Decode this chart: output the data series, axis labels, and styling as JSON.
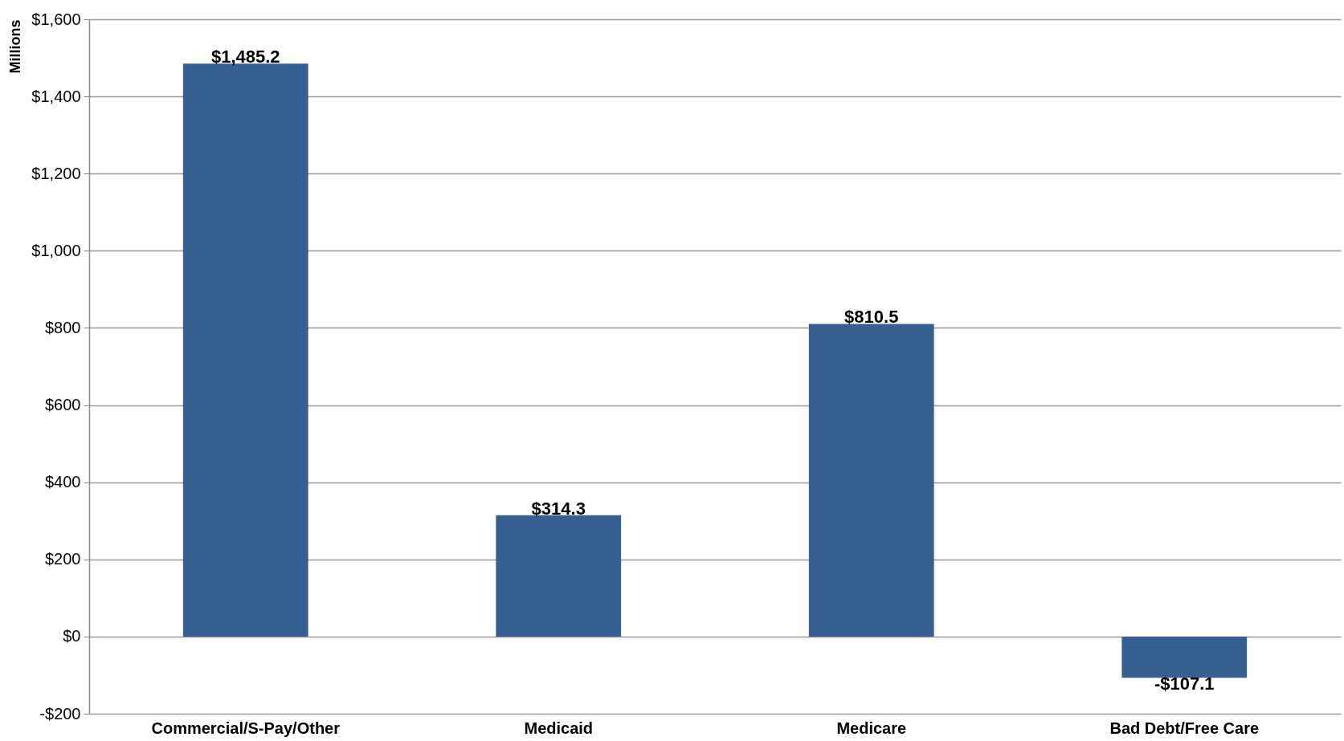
{
  "chart_data": {
    "type": "bar",
    "ylabel": "Millions",
    "categories": [
      "Commercial/S-Pay/Other",
      "Medicaid",
      "Medicare",
      "Bad Debt/Free Care"
    ],
    "values": [
      1485.2,
      314.3,
      810.5,
      -107.1
    ],
    "value_labels": [
      "$1,485.2",
      "$314.3",
      "$810.5",
      "-$107.1"
    ],
    "color": "#376092",
    "ylim": [
      -200,
      1600
    ],
    "yticks": [
      {
        "value": -200,
        "label": "-$200"
      },
      {
        "value": 0,
        "label": "$0"
      },
      {
        "value": 200,
        "label": "$200"
      },
      {
        "value": 400,
        "label": "$400"
      },
      {
        "value": 600,
        "label": "$600"
      },
      {
        "value": 800,
        "label": "$800"
      },
      {
        "value": 1000,
        "label": "$1,000"
      },
      {
        "value": 1200,
        "label": "$1,200"
      },
      {
        "value": 1400,
        "label": "$1,400"
      },
      {
        "value": 1600,
        "label": "$1,600"
      }
    ],
    "grid": "y"
  }
}
